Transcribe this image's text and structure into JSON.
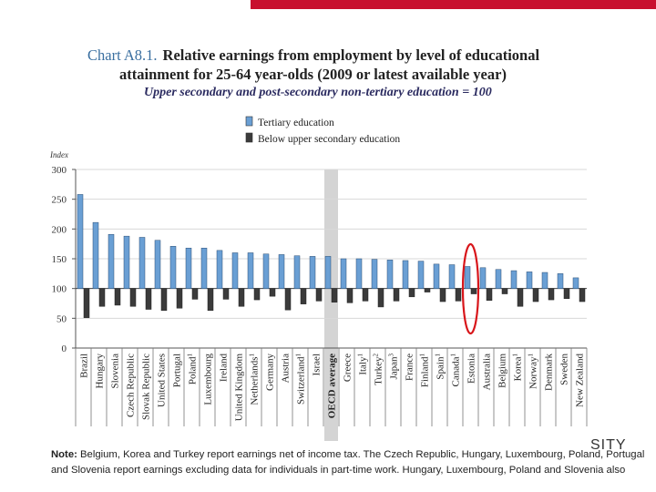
{
  "header": {
    "chart_label": "Chart A8.1.",
    "title_line1": "Relative earnings from employment by level of educational",
    "title_line2": "attainment for 25-64 year-olds (2009 or latest available year)",
    "subtitle": "Upper secondary and post-secondary non-tertiary education = 100"
  },
  "note": {
    "label": "Note:",
    "line1": "Belgium, Korea and Turkey report earnings net of income tax. The Czech Republic, Hungary, Luxembourg, Poland, Portugal",
    "line2": "and Slovenia report earnings excluding data for individuals in part-time work. Hungary, Luxembourg, Poland and Slovenia also"
  },
  "cropped_word": "SITY",
  "colors": {
    "tertiary": "#6a9fd4",
    "below": "#3b3b3b",
    "oecd_band": "#d4d4d4",
    "highlight": "#d8161b",
    "topbar": "#c8102e"
  },
  "chart_data": {
    "type": "bar",
    "title": "Relative earnings from employment by level of educational attainment for 25-64 year-olds (2009 or latest available year)",
    "ylabel": "Index",
    "ylim": [
      0,
      300
    ],
    "yticks": [
      0,
      50,
      100,
      150,
      200,
      250,
      300
    ],
    "baseline": 100,
    "legend": [
      "Tertiary education",
      "Below upper secondary education"
    ],
    "legend_position": "top-left",
    "highlighted_category": "Estonia",
    "categories": [
      {
        "name": "Brazil",
        "sup": ""
      },
      {
        "name": "Hungary",
        "sup": ""
      },
      {
        "name": "Slovenia",
        "sup": ""
      },
      {
        "name": "Czech Republic",
        "sup": ""
      },
      {
        "name": "Slovak Republic",
        "sup": ""
      },
      {
        "name": "United States",
        "sup": ""
      },
      {
        "name": "Portugal",
        "sup": ""
      },
      {
        "name": "Poland",
        "sup": "1"
      },
      {
        "name": "Luxembourg",
        "sup": ""
      },
      {
        "name": "Ireland",
        "sup": ""
      },
      {
        "name": "United Kingdom",
        "sup": ""
      },
      {
        "name": "Netherlands",
        "sup": "1"
      },
      {
        "name": "Germany",
        "sup": ""
      },
      {
        "name": "Austria",
        "sup": ""
      },
      {
        "name": "Switzerland",
        "sup": "1"
      },
      {
        "name": "Israel",
        "sup": ""
      },
      {
        "name": "OECD average",
        "sup": ""
      },
      {
        "name": "Greece",
        "sup": ""
      },
      {
        "name": "Italy",
        "sup": "1"
      },
      {
        "name": "Turkey",
        "sup": "2"
      },
      {
        "name": "Japan",
        "sup": "3"
      },
      {
        "name": "France",
        "sup": ""
      },
      {
        "name": "Finland",
        "sup": "1"
      },
      {
        "name": "Spain",
        "sup": "1"
      },
      {
        "name": "Canada",
        "sup": "1"
      },
      {
        "name": "Estonia",
        "sup": ""
      },
      {
        "name": "Australia",
        "sup": ""
      },
      {
        "name": "Belgium",
        "sup": ""
      },
      {
        "name": "Korea",
        "sup": "1"
      },
      {
        "name": "Norway",
        "sup": "1"
      },
      {
        "name": "Denmark",
        "sup": ""
      },
      {
        "name": "Sweden",
        "sup": ""
      },
      {
        "name": "New Zealand",
        "sup": ""
      }
    ],
    "series": [
      {
        "name": "Tertiary education",
        "values": [
          258,
          211,
          191,
          188,
          186,
          181,
          171,
          168,
          168,
          164,
          160,
          160,
          158,
          157,
          155,
          154,
          154,
          150,
          150,
          149,
          148,
          147,
          146,
          141,
          140,
          137,
          135,
          132,
          130,
          128,
          127,
          125,
          118
        ]
      },
      {
        "name": "Below upper secondary education",
        "values": [
          51,
          70,
          72,
          70,
          65,
          63,
          67,
          82,
          63,
          82,
          70,
          81,
          87,
          64,
          74,
          79,
          77,
          76,
          79,
          69,
          79,
          86,
          94,
          78,
          79,
          91,
          80,
          91,
          70,
          78,
          81,
          83,
          78
        ]
      }
    ]
  }
}
